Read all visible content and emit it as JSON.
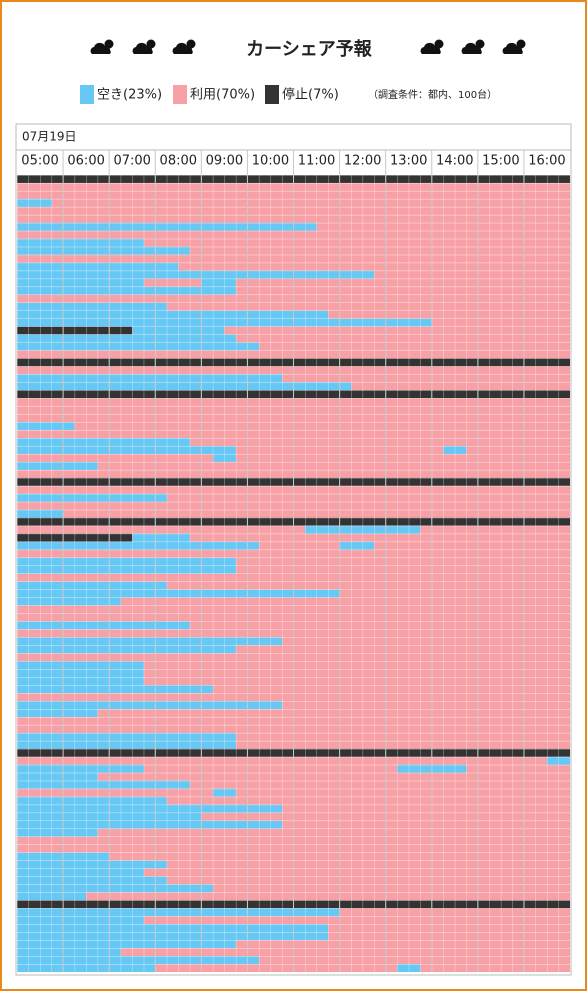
{
  "title": "カーシェア予報",
  "legend": [
    {
      "name": "空き(23%)",
      "color": "#66c8f5"
    },
    {
      "name": "利用(70%)",
      "color": "#f7a1a7"
    },
    {
      "name": "停止(7%)",
      "color": "#333333"
    }
  ],
  "note": "（調査条件：都内、100台）",
  "date": "07月19日",
  "timeline": {
    "xlim": [
      5,
      17
    ],
    "xticks": [
      {
        "value": 5,
        "label": "05:00"
      },
      {
        "value": 6,
        "label": "06:00"
      },
      {
        "value": 7,
        "label": "07:00"
      },
      {
        "value": 8,
        "label": "08:00"
      },
      {
        "value": 9,
        "label": "09:00"
      },
      {
        "value": 10,
        "label": "10:00"
      },
      {
        "value": 11,
        "label": "11:00"
      },
      {
        "value": 12,
        "label": "12:00"
      },
      {
        "value": 13,
        "label": "13:00"
      },
      {
        "value": 14,
        "label": "14:00"
      },
      {
        "value": 15,
        "label": "15:00"
      },
      {
        "value": 16,
        "label": "16:00"
      }
    ],
    "rows": [
      [
        [
          2,
          5,
          17
        ]
      ],
      [],
      [],
      [
        [
          0,
          5,
          5.75
        ]
      ],
      [],
      [],
      [
        [
          0,
          5,
          11.5
        ]
      ],
      [],
      [
        [
          0,
          5,
          7.75
        ]
      ],
      [
        [
          0,
          5,
          8.75
        ]
      ],
      [],
      [
        [
          0,
          5,
          8.5
        ]
      ],
      [
        [
          0,
          5,
          12.75
        ]
      ],
      [
        [
          0,
          5,
          7.75
        ],
        [
          0,
          9,
          9.75
        ]
      ],
      [
        [
          0,
          5,
          9.75
        ]
      ],
      [],
      [
        [
          0,
          5,
          8.25
        ]
      ],
      [
        [
          0,
          5,
          11.75
        ]
      ],
      [
        [
          0,
          5,
          14
        ]
      ],
      [
        [
          2,
          5,
          7.5
        ],
        [
          0,
          7.5,
          9.5
        ]
      ],
      [
        [
          0,
          5,
          9.75
        ]
      ],
      [
        [
          0,
          5,
          10.25
        ]
      ],
      [],
      [
        [
          2,
          5,
          17
        ]
      ],
      [],
      [
        [
          0,
          5,
          10.75
        ]
      ],
      [
        [
          0,
          5,
          12.25
        ]
      ],
      [
        [
          2,
          5,
          17
        ]
      ],
      [],
      [],
      [],
      [
        [
          0,
          5,
          6.25
        ]
      ],
      [],
      [
        [
          0,
          5,
          8.75
        ]
      ],
      [
        [
          0,
          5,
          9.75
        ],
        [
          0,
          14.25,
          14.75
        ]
      ],
      [
        [
          0,
          9.25,
          9.75
        ]
      ],
      [
        [
          0,
          5,
          6.75
        ]
      ],
      [],
      [
        [
          2,
          5,
          17
        ]
      ],
      [],
      [
        [
          0,
          5,
          8.25
        ]
      ],
      [],
      [
        [
          0,
          5,
          6
        ]
      ],
      [
        [
          2,
          5,
          17
        ]
      ],
      [
        [
          0,
          11.25,
          13.75
        ]
      ],
      [
        [
          2,
          5,
          7.5
        ],
        [
          0,
          7.5,
          8.75
        ]
      ],
      [
        [
          0,
          5,
          10.25
        ],
        [
          0,
          12,
          12.75
        ]
      ],
      [],
      [
        [
          0,
          5,
          9.75
        ]
      ],
      [
        [
          0,
          5,
          9.75
        ]
      ],
      [],
      [
        [
          0,
          5,
          8.25
        ]
      ],
      [
        [
          0,
          5,
          12
        ]
      ],
      [
        [
          0,
          5,
          7.25
        ]
      ],
      [],
      [],
      [
        [
          0,
          5,
          8.75
        ]
      ],
      [],
      [
        [
          0,
          5,
          10.75
        ]
      ],
      [
        [
          0,
          5,
          9.75
        ]
      ],
      [],
      [
        [
          0,
          5,
          7.75
        ]
      ],
      [
        [
          0,
          5,
          7.75
        ]
      ],
      [
        [
          0,
          5,
          7.75
        ]
      ],
      [
        [
          0,
          5,
          9.25
        ]
      ],
      [],
      [
        [
          0,
          5,
          10.75
        ]
      ],
      [
        [
          0,
          5,
          6.75
        ]
      ],
      [],
      [],
      [
        [
          0,
          5,
          9.75
        ]
      ],
      [
        [
          0,
          5,
          9.75
        ]
      ],
      [
        [
          2,
          5,
          17
        ]
      ],
      [
        [
          0,
          16.5,
          17
        ]
      ],
      [
        [
          0,
          5,
          7.75
        ],
        [
          0,
          13.25,
          14.75
        ]
      ],
      [
        [
          0,
          5,
          6.75
        ]
      ],
      [
        [
          0,
          5,
          8.75
        ]
      ],
      [
        [
          0,
          9.25,
          9.75
        ]
      ],
      [
        [
          0,
          5,
          8.25
        ]
      ],
      [
        [
          0,
          5,
          10.75
        ]
      ],
      [
        [
          0,
          5,
          9
        ]
      ],
      [
        [
          0,
          5,
          10.75
        ]
      ],
      [
        [
          0,
          5,
          6.75
        ]
      ],
      [],
      [],
      [
        [
          0,
          5,
          7
        ]
      ],
      [
        [
          0,
          5,
          8.25
        ]
      ],
      [
        [
          0,
          5,
          7.75
        ]
      ],
      [
        [
          0,
          5,
          8.25
        ]
      ],
      [
        [
          0,
          5,
          9.25
        ]
      ],
      [
        [
          0,
          5,
          6.5
        ]
      ],
      [
        [
          2,
          5,
          17
        ]
      ],
      [
        [
          0,
          5,
          12
        ]
      ],
      [
        [
          0,
          5,
          7.75
        ]
      ],
      [
        [
          0,
          5,
          11.75
        ]
      ],
      [
        [
          0,
          5,
          11.75
        ]
      ],
      [
        [
          0,
          5,
          9.75
        ]
      ],
      [
        [
          0,
          5,
          7.25
        ]
      ],
      [
        [
          0,
          5,
          10.25
        ]
      ],
      [
        [
          0,
          5,
          8
        ],
        [
          0,
          13.25,
          13.75
        ]
      ]
    ]
  }
}
